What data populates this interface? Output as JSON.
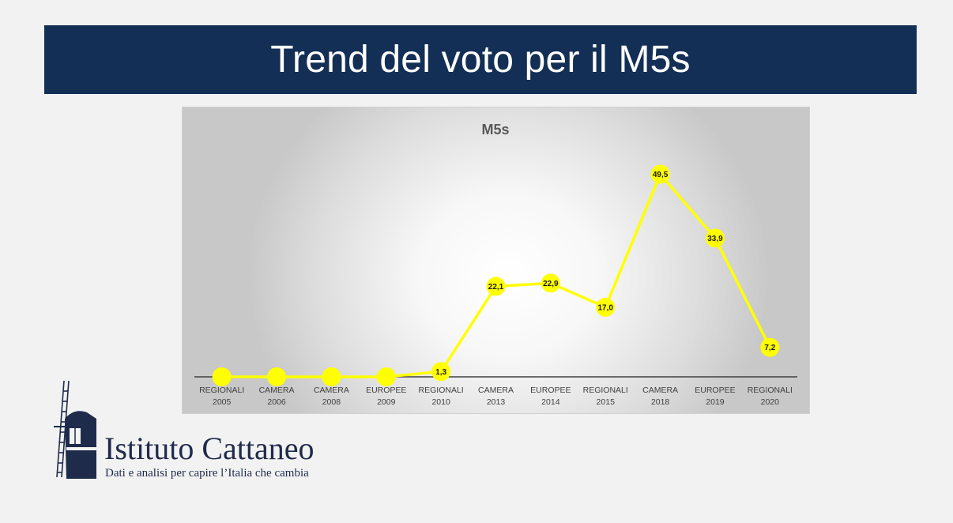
{
  "slide": {
    "title": "Trend del voto per il M5s"
  },
  "colors": {
    "title_bar": "#132f55",
    "series_line": "#ffff00",
    "marker_fill": "#ffff00",
    "logo": "#1f2b4b"
  },
  "chart_data": {
    "type": "line",
    "title": "M5s",
    "xlabel": "",
    "ylabel": "",
    "categories": [
      [
        "REGIONALI",
        "2005"
      ],
      [
        "CAMERA",
        "2006"
      ],
      [
        "CAMERA",
        "2008"
      ],
      [
        "EUROPEE",
        "2009"
      ],
      [
        "REGIONALI",
        "2010"
      ],
      [
        "CAMERA",
        "2013"
      ],
      [
        "EUROPEE",
        "2014"
      ],
      [
        "REGIONALI",
        "2015"
      ],
      [
        "CAMERA",
        "2018"
      ],
      [
        "EUROPEE",
        "2019"
      ],
      [
        "REGIONALI",
        "2020"
      ]
    ],
    "series": [
      {
        "values": [
          0,
          0,
          0,
          0,
          1.3,
          22.1,
          22.9,
          17.0,
          49.5,
          33.9,
          7.2
        ],
        "labels": [
          "",
          "",
          "",
          "",
          "1,3",
          "22,1",
          "22,9",
          "17,0",
          "49,5",
          "33,9",
          "7,2"
        ]
      }
    ],
    "ylim": [
      0,
      55
    ],
    "grid": false,
    "legend": "none"
  },
  "logo": {
    "name": "Istituto Cattaneo",
    "tagline": "Dati e analisi per capire l’Italia che cambia",
    "icon": "windmill-icon"
  }
}
